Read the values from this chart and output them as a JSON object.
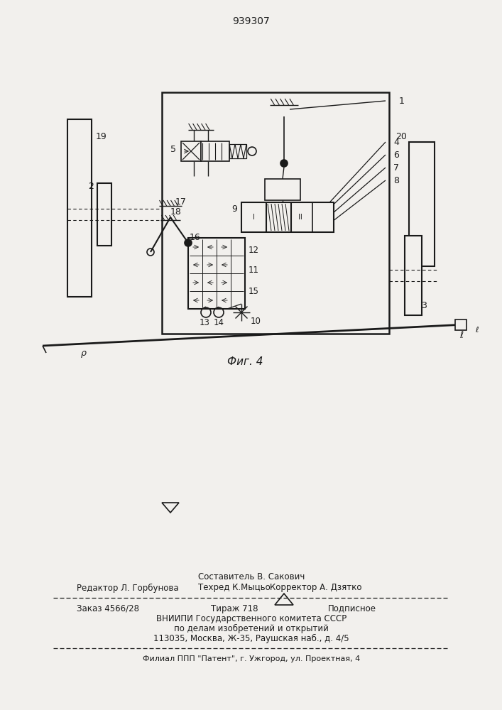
{
  "title": "939307",
  "fig_label": "Фиг. 4",
  "bg_color": "#f2f0ed",
  "line_color": "#1a1a1a",
  "bottom_texts": {
    "sestavitel": "Составитель В. Сакович",
    "redaktor": "Редактор Л. Горбунова",
    "tehred": "Техред К.Мыцьо",
    "korrektor": "Корректор А. Дзятко",
    "zakaz": "Заказ 4566/28",
    "tirazh": "Тираж 718",
    "podpisnoe": "Подписное",
    "vniipи": "ВНИИПИ Государственного комитета СССР",
    "po_delam": "по делам изобретений и открытий",
    "address": "113035, Москва, Ж-35, Раушская наб., д. 4/5",
    "filial": "Филиал ППП \"Патент\", г. Ужгород, ул. Проектная, 4"
  }
}
